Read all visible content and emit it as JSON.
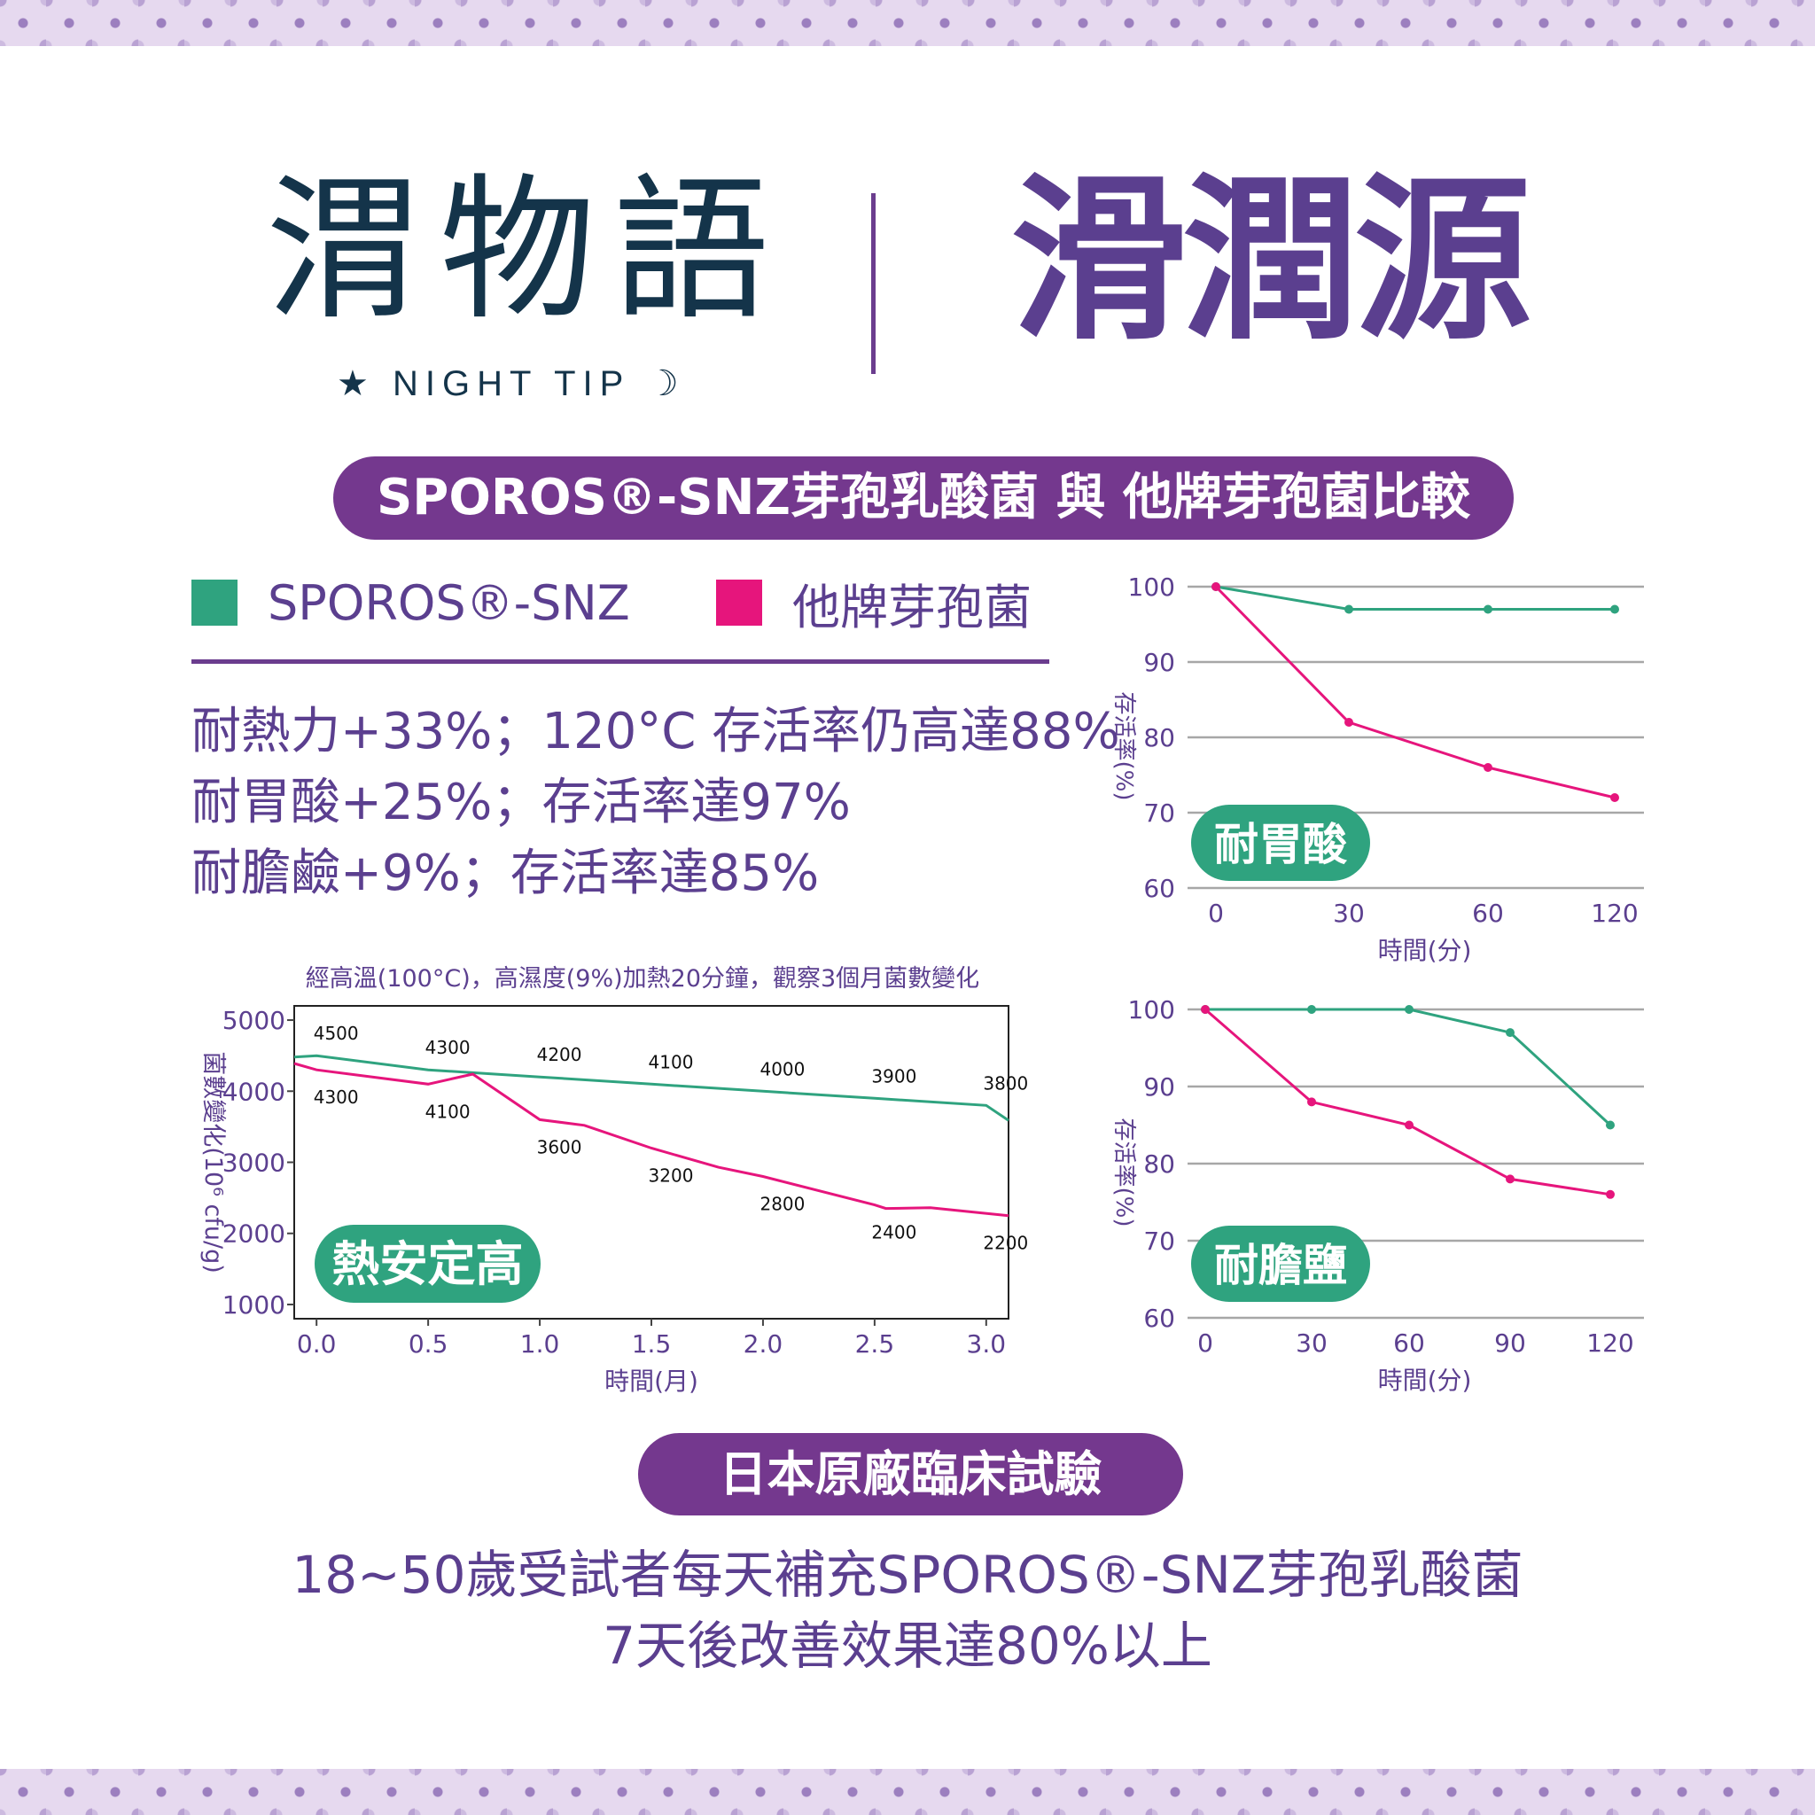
{
  "brand": {
    "name_cn": "渭物語",
    "name_en": "★ NIGHT TIP ☽"
  },
  "product": {
    "title": "滑潤源"
  },
  "comparison": {
    "heading": "SPOROS®-SNZ芽孢乳酸菌 與 他牌芽孢菌比較",
    "legend": [
      {
        "label": "SPOROS®-SNZ",
        "color": "#2fa37f"
      },
      {
        "label": "他牌芽孢菌",
        "color": "#e6157c"
      }
    ],
    "stats": [
      "耐熱力+33%；120°C 存活率仍高達88%",
      "耐胃酸+25%；存活率達97%",
      "耐膽鹼+9%；存活率達85%"
    ]
  },
  "colors": {
    "accent": "#74388e",
    "snz": "#2fa37f",
    "other": "#e6157c",
    "text": "#5b3f8f",
    "badge": "#2fa37f"
  },
  "chart_data": [
    {
      "type": "line",
      "title": "經高溫(100°C)，高濕度(9%)加熱20分鐘，觀察3個月菌數變化",
      "badge": "熱安定高",
      "xlabel": "時間(月)",
      "ylabel": "菌數變化(10⁶ cfu/g)",
      "xlim": [
        -0.1,
        3.1
      ],
      "ylim": [
        800,
        5200
      ],
      "xticks": [
        0.0,
        0.5,
        1.0,
        1.5,
        2.0,
        2.5,
        3.0
      ],
      "xtick_labels": [
        "0.0",
        "0.5",
        "1.0",
        "1.5",
        "2.0",
        "2.5",
        "3.0"
      ],
      "yticks": [
        1000,
        2000,
        3000,
        4000,
        5000
      ],
      "grid": false,
      "series": [
        {
          "color": "#2fa37f",
          "x": [
            -0.1,
            0.0,
            0.5,
            1.0,
            1.5,
            2.0,
            2.5,
            3.0,
            3.1
          ],
          "y": [
            4480,
            4500,
            4300,
            4200,
            4100,
            4000,
            3900,
            3800,
            3590
          ],
          "labels": [
            {
              "x": 0.0,
              "text": "4500"
            },
            {
              "x": 0.5,
              "text": "4300"
            },
            {
              "x": 1.0,
              "text": "4200"
            },
            {
              "x": 1.5,
              "text": "4100"
            },
            {
              "x": 2.0,
              "text": "4000"
            },
            {
              "x": 2.5,
              "text": "3900"
            },
            {
              "x": 3.0,
              "text": "3800"
            }
          ]
        },
        {
          "color": "#e6157c",
          "x": [
            -0.1,
            0.0,
            0.5,
            0.7,
            1.0,
            1.2,
            1.5,
            1.8,
            2.0,
            2.5,
            2.55,
            2.75,
            3.1
          ],
          "y": [
            4390,
            4300,
            4100,
            4240,
            3600,
            3520,
            3200,
            2930,
            2800,
            2400,
            2350,
            2360,
            2250
          ],
          "labels": [
            {
              "x": 0.0,
              "text": "4300"
            },
            {
              "x": 0.5,
              "text": "4100"
            },
            {
              "x": 1.0,
              "text": "3600"
            },
            {
              "x": 1.5,
              "text": "3200"
            },
            {
              "x": 2.0,
              "text": "2800"
            },
            {
              "x": 2.5,
              "text": "2400"
            },
            {
              "x": 3.0,
              "text": "2200"
            }
          ]
        }
      ]
    },
    {
      "type": "line",
      "title": "",
      "badge": "耐胃酸",
      "xlabel": "時間(分)",
      "ylabel": "存活率(%)",
      "ylim": [
        60,
        100
      ],
      "yticks": [
        60,
        70,
        80,
        90,
        100
      ],
      "categories": [
        "0",
        "30",
        "60",
        "120"
      ],
      "grid": true,
      "series": [
        {
          "color": "#2fa37f",
          "values": [
            100,
            97,
            97,
            97
          ]
        },
        {
          "color": "#e6157c",
          "values": [
            100,
            82,
            76,
            72
          ]
        }
      ]
    },
    {
      "type": "line",
      "title": "",
      "badge": "耐膽鹽",
      "xlabel": "時間(分)",
      "ylabel": "存活率(%)",
      "ylim": [
        60,
        100
      ],
      "yticks": [
        60,
        70,
        80,
        90,
        100
      ],
      "categories": [
        "0",
        "30",
        "60",
        "90",
        "120"
      ],
      "grid": true,
      "series": [
        {
          "color": "#2fa37f",
          "values": [
            100,
            100,
            100,
            97,
            85
          ]
        },
        {
          "color": "#e6157c",
          "values": [
            100,
            88,
            85,
            78,
            76
          ]
        }
      ]
    }
  ],
  "clinical": {
    "heading": "日本原廠臨床試驗",
    "lines": [
      "18~50歲受試者每天補充SPOROS®-SNZ芽孢乳酸菌",
      "7天後改善效果達80%以上"
    ]
  }
}
